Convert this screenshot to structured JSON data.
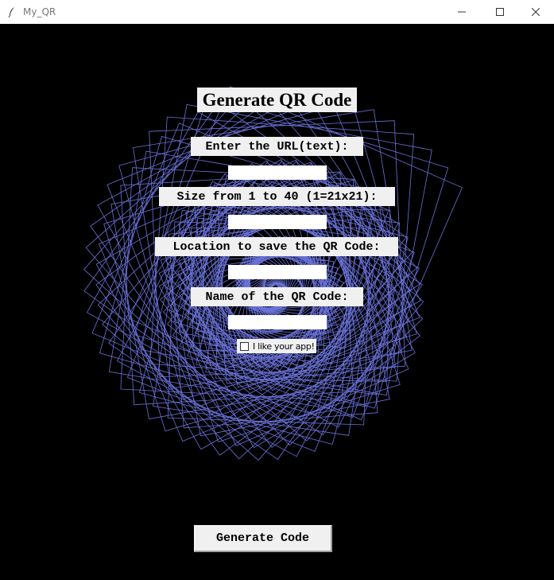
{
  "window": {
    "title": "My_QR",
    "app_icon": "feather-icon",
    "controls": [
      "minimize-icon",
      "maximize-icon",
      "close-icon"
    ]
  },
  "main": {
    "heading": "Generate QR Code",
    "fields": [
      {
        "label": "Enter the URL(text):",
        "value": ""
      },
      {
        "label": "Size from 1 to 40 (1=21x21):",
        "value": ""
      },
      {
        "label": "Location to save the QR Code:",
        "value": ""
      },
      {
        "label": "Name of the QR Code:",
        "value": ""
      }
    ],
    "checkbox": {
      "label": "I like your app!",
      "checked": false
    },
    "generate_button": "Generate Code"
  },
  "colors": {
    "background": "#000000",
    "spiral_stroke": "#6a72d8",
    "widget_bg": "#f0f0f0"
  }
}
